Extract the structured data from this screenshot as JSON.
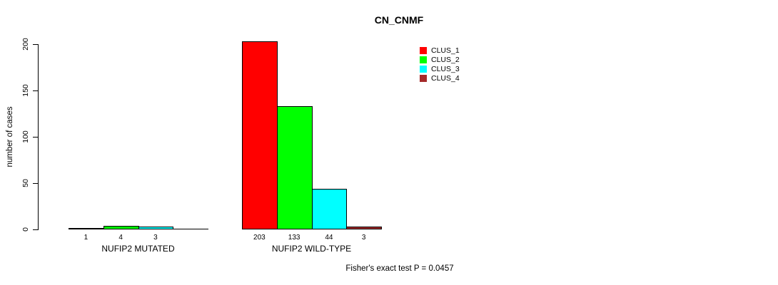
{
  "chart_data": {
    "type": "bar",
    "title": "CN_CNMF",
    "ylabel": "number of cases",
    "ylim": [
      0,
      200
    ],
    "yticks": [
      0,
      50,
      100,
      150,
      200
    ],
    "grid": false,
    "legend_position": "top-right",
    "series": [
      {
        "name": "CLUS_1",
        "color": "#FF0000"
      },
      {
        "name": "CLUS_2",
        "color": "#00FF00"
      },
      {
        "name": "CLUS_3",
        "color": "#00FFFF"
      },
      {
        "name": "CLUS_4",
        "color": "#A52A2A"
      }
    ],
    "groups": [
      {
        "label": "NUFIP2 MUTATED",
        "values": [
          1,
          4,
          3,
          0
        ],
        "value_labels": [
          "1",
          "4",
          "3",
          ""
        ]
      },
      {
        "label": "NUFIP2 WILD-TYPE",
        "values": [
          203,
          133,
          44,
          3
        ],
        "value_labels": [
          "203",
          "133",
          "44",
          "3"
        ]
      }
    ],
    "annotation": "Fisher's exact test P = 0.0457"
  }
}
